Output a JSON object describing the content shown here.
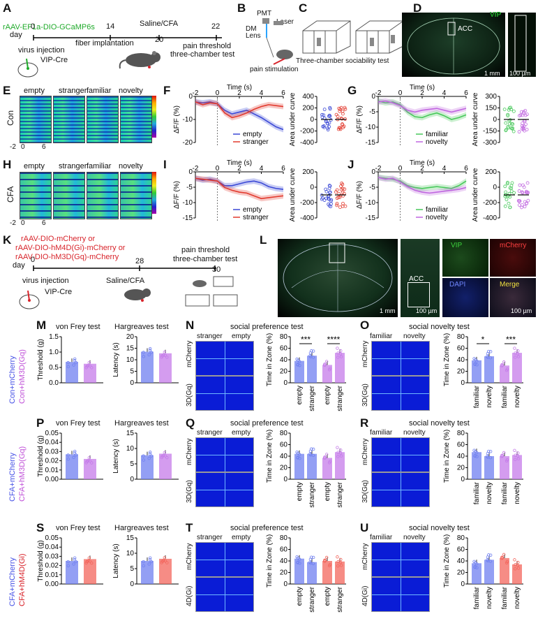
{
  "panels": {
    "A": "A",
    "B": "B",
    "C": "C",
    "D": "D",
    "E": "E",
    "F": "F",
    "G": "G",
    "H": "H",
    "I": "I",
    "J": "J",
    "K": "K",
    "L": "L",
    "M": "M",
    "N": "N",
    "O": "O",
    "P": "P",
    "Q": "Q",
    "R": "R",
    "S": "S",
    "T": "T",
    "U": "U"
  },
  "timeline_A": {
    "virus": "rAAV-EF1a-DIO-GCaMP6s",
    "day_label": "day",
    "days": [
      "0",
      "14",
      "20",
      "22"
    ],
    "virus_injection": "virus injection",
    "fiber": "fiber implantation",
    "saline_cfa": "Saline/CFA",
    "pain_threshold": "pain threshold",
    "three_chamber": "three-chamber test",
    "vip_cre": "VIP-Cre"
  },
  "setup_B": {
    "pmt": "PMT",
    "laser": "Laser",
    "dm": "DM",
    "lens": "Lens",
    "pain_stim": "pain stimulation"
  },
  "setup_C": {
    "caption": "Three-chamber sociability test"
  },
  "image_D": {
    "vip": "VIP",
    "acc": "ACC",
    "scale1": "1 mm",
    "scale2": "100 µm"
  },
  "heatmaps": {
    "cols": [
      "empty",
      "stranger",
      "familiar",
      "novelty"
    ],
    "row_con": "Con",
    "row_cfa": "CFA",
    "xticks": [
      "-2",
      "0",
      "6"
    ]
  },
  "trace_axes": {
    "time_label": "Time (s)",
    "xticks": [
      "-2",
      "0",
      "2",
      "4",
      "6"
    ],
    "ylabel": "ΔF/F (%)",
    "auc_label": "Area under curve",
    "auc_ticks_F": [
      "400",
      "200",
      "0",
      "-200",
      "-400"
    ],
    "auc_ticks_G": [
      "300",
      "150",
      "0",
      "-150",
      "-300"
    ],
    "auc_ticks_I": [
      "200",
      "0",
      "-200",
      "-400"
    ],
    "auc_ticks_J": [
      "200",
      "0",
      "-200",
      "-400"
    ],
    "yticks_F": [
      "0",
      "-10",
      "-20"
    ],
    "yticks_G": [
      "0",
      "-5",
      "-10",
      "-15"
    ],
    "yticks_I": [
      "0",
      "-5",
      "-10",
      "-15"
    ],
    "yticks_J": [
      "0",
      "-5",
      "-10",
      "-15"
    ]
  },
  "legends": {
    "empty": "empty",
    "stranger": "stranger",
    "familiar": "familiar",
    "novelty": "novelty"
  },
  "colors": {
    "empty": "#3b49d6",
    "stranger": "#e23a2e",
    "familiar": "#47c85a",
    "novelty": "#c066e0",
    "con_mcherry": "#6f7ff0",
    "hm3d": "#c57be9",
    "hm4d": "#f3655c"
  },
  "timeline_K": {
    "virus_lines": [
      "rAAV-DIO-mCherry or",
      "rAAV-DIO-hM4D(Gi)-mCherry or",
      "rAAV-DIO-hM3D(Gq)-mCherry"
    ],
    "day_label": "day",
    "days": [
      "0",
      "28",
      "30"
    ],
    "virus_injection": "virus injection",
    "vip_cre": "VIP-Cre",
    "saline_cfa": "Saline/CFA",
    "pain_threshold": "pain threshold",
    "three_chamber": "three-chamber test"
  },
  "image_L": {
    "acc": "ACC",
    "vip": "VIP",
    "mcherry": "mCherry",
    "dapi": "DAPI",
    "merge": "Merge",
    "scale1": "1 mm",
    "scale2": "100 µm",
    "scale3": "100 µm"
  },
  "row_groups": {
    "M": [
      "Con+mCherry",
      "Con+hM3D(Gq)"
    ],
    "P": [
      "CFA+mCherry",
      "CFA+hM3D(Gq)"
    ],
    "S": [
      "CFA+mCherry",
      "CFA+hM4D(Gi)"
    ]
  },
  "behavior": {
    "vonfrey": "von Frey test",
    "hargreaves": "Hargreaves test",
    "threshold": "Threshold (g)",
    "latency": "Latency (s)",
    "social_pref": "social preference test",
    "social_nov": "social novelty test",
    "time_in_zone": "Time in Zone (%)",
    "stranger": "stranger",
    "empty": "empty",
    "familiar": "familiar",
    "novelty": "novelty",
    "mcherry": "mCherry",
    "gq": "3D(Gq)",
    "gi": "4D(Gi)",
    "sig_N": [
      "***",
      "****"
    ],
    "sig_O": [
      "*",
      "***"
    ]
  },
  "chart_data": [
    {
      "panel": "M-vonfrey",
      "type": "bar",
      "categories": [
        "Con+mCherry",
        "Con+hM3D(Gq)"
      ],
      "values": [
        0.68,
        0.62
      ],
      "ylim": [
        0,
        1.5
      ],
      "yticks": [
        "0.0",
        "0.5",
        "1.0",
        "1.5"
      ]
    },
    {
      "panel": "M-hargreaves",
      "type": "bar",
      "categories": [
        "Con+mCherry",
        "Con+hM3D(Gq)"
      ],
      "values": [
        13.5,
        12.8
      ],
      "ylim": [
        0,
        20
      ],
      "yticks": [
        "0",
        "5",
        "10",
        "15",
        "20"
      ]
    },
    {
      "panel": "N",
      "type": "bar",
      "categories": [
        "empty",
        "stranger",
        "empty",
        "stranger"
      ],
      "values": [
        38,
        47,
        31,
        52
      ],
      "ylim": [
        0,
        80
      ],
      "yticks": [
        "0",
        "20",
        "40",
        "60",
        "80"
      ]
    },
    {
      "panel": "O",
      "type": "bar",
      "categories": [
        "familiar",
        "novelty",
        "familiar",
        "novelty"
      ],
      "values": [
        39,
        46,
        30,
        52
      ],
      "ylim": [
        0,
        80
      ],
      "yticks": [
        "0",
        "20",
        "40",
        "60",
        "80"
      ]
    },
    {
      "panel": "P-vonfrey",
      "type": "bar",
      "categories": [
        "CFA+mCherry",
        "CFA+hM3D(Gq)"
      ],
      "values": [
        0.027,
        0.022
      ],
      "ylim": [
        0,
        0.05
      ],
      "yticks": [
        "0.00",
        "0.01",
        "0.02",
        "0.03",
        "0.04",
        "0.05"
      ]
    },
    {
      "panel": "P-hargreaves",
      "type": "bar",
      "categories": [
        "CFA+mCherry",
        "CFA+hM3D(Gq)"
      ],
      "values": [
        7.8,
        8.3
      ],
      "ylim": [
        0,
        15
      ],
      "yticks": [
        "0",
        "5",
        "10",
        "15"
      ]
    },
    {
      "panel": "Q",
      "type": "bar",
      "categories": [
        "empty",
        "stranger",
        "empty",
        "stranger"
      ],
      "values": [
        44,
        44,
        37,
        47
      ],
      "ylim": [
        0,
        80
      ],
      "yticks": [
        "0",
        "20",
        "40",
        "60",
        "80"
      ]
    },
    {
      "panel": "R",
      "type": "bar",
      "categories": [
        "familiar",
        "novelty",
        "familiar",
        "novelty"
      ],
      "values": [
        47,
        40,
        40,
        42
      ],
      "ylim": [
        0,
        80
      ],
      "yticks": [
        "0",
        "20",
        "40",
        "60",
        "80"
      ]
    },
    {
      "panel": "S-vonfrey",
      "type": "bar",
      "categories": [
        "CFA+mCherry",
        "CFA+hM4D(Gi)"
      ],
      "values": [
        0.025,
        0.027
      ],
      "ylim": [
        0,
        0.05
      ],
      "yticks": [
        "0.00",
        "0.01",
        "0.02",
        "0.03",
        "0.04",
        "0.05"
      ]
    },
    {
      "panel": "S-hargreaves",
      "type": "bar",
      "categories": [
        "CFA+mCherry",
        "CFA+hM4D(Gi)"
      ],
      "values": [
        7.5,
        8.2
      ],
      "ylim": [
        0,
        15
      ],
      "yticks": [
        "0",
        "5",
        "10",
        "15"
      ]
    },
    {
      "panel": "T",
      "type": "bar",
      "categories": [
        "empty",
        "stranger",
        "empty",
        "stranger"
      ],
      "values": [
        44,
        38,
        40,
        39
      ],
      "ylim": [
        0,
        80
      ],
      "yticks": [
        "0",
        "20",
        "40",
        "60",
        "80"
      ]
    },
    {
      "panel": "U",
      "type": "bar",
      "categories": [
        "familiar",
        "novelty",
        "familiar",
        "novelty"
      ],
      "values": [
        36,
        42,
        45,
        34
      ],
      "ylim": [
        0,
        80
      ],
      "yticks": [
        "0",
        "20",
        "40",
        "60",
        "80"
      ]
    }
  ]
}
